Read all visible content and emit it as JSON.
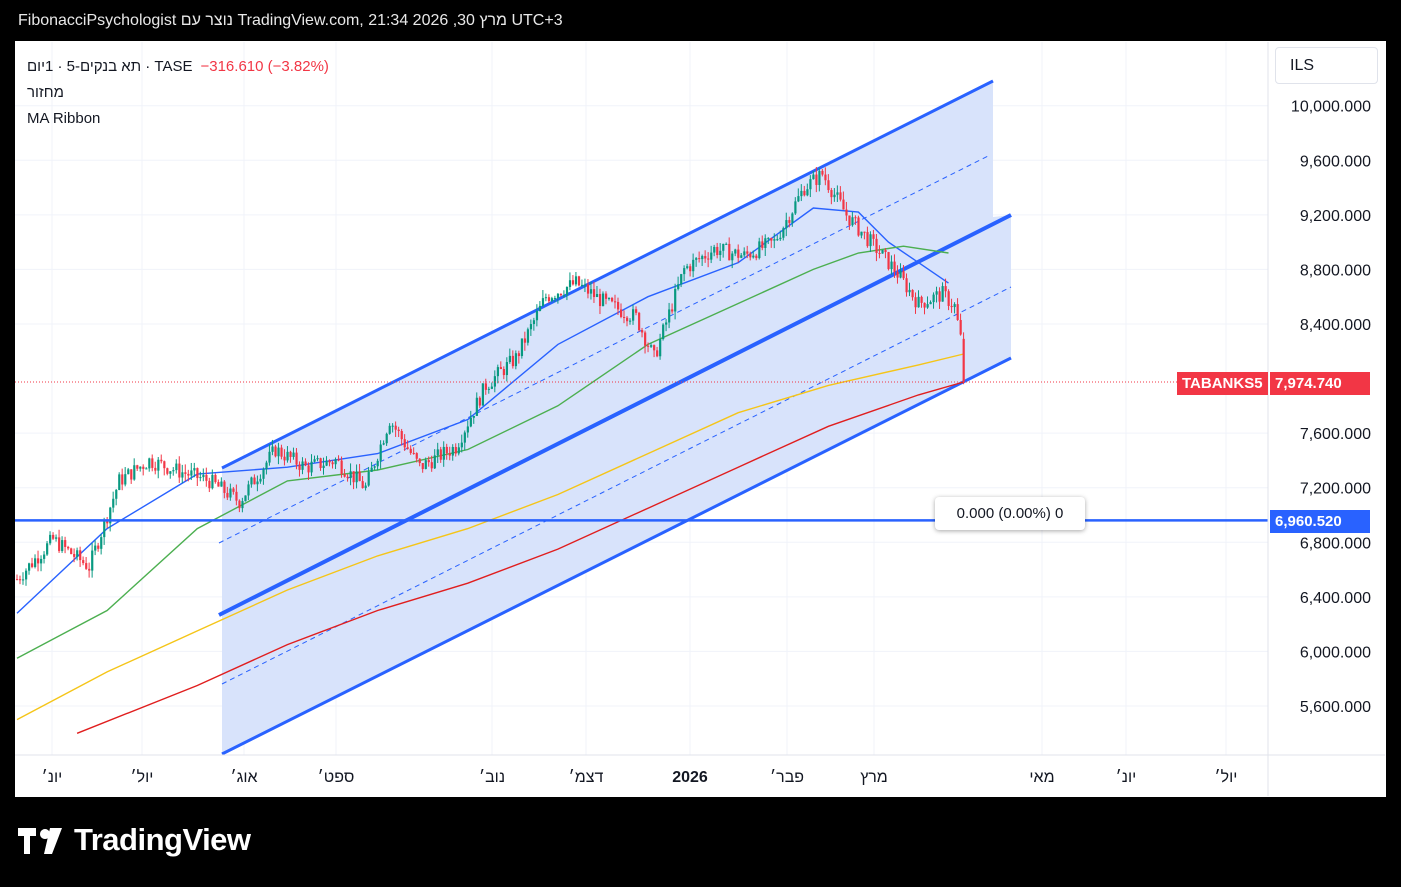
{
  "header": {
    "text": "FibonacciPsychologist נוצר עם TradingView.com, 21:34 2026 ,30 מרץ UTC+3"
  },
  "legend": {
    "symbol": "תא בנקים-5 · 1יום · TASE",
    "change": "−316.610 (−3.82%)",
    "volume_label": "מחזור",
    "indicator": "MA Ribbon"
  },
  "currency": "ILS",
  "price_labels": {
    "symbol_tag": "TABANKS5",
    "last_price": "7,974.740",
    "line_price": "6,960.520"
  },
  "measure_box": "0.000 (0.00%) 0",
  "logo_text": "TradingView",
  "colors": {
    "up": "#089981",
    "down": "#f23645",
    "channel": "#2962ff",
    "channel_fill": "#d6e2fb",
    "ma_blue": "#2962ff",
    "ma_green": "#4caf50",
    "ma_yellow": "#f5c518",
    "ma_red": "#e01e1e"
  },
  "chart_data": {
    "type": "candlestick",
    "y_axis_ticks": [
      "10,000.000",
      "9,600.000",
      "9,200.000",
      "8,800.000",
      "8,400.000",
      "7,600.000",
      "7,200.000",
      "6,800.000",
      "6,400.000",
      "6,000.000",
      "5,600.000"
    ],
    "y_tick_values": [
      10000,
      9600,
      9200,
      8800,
      8400,
      7600,
      7200,
      6800,
      6400,
      6000,
      5600
    ],
    "x_axis_labels": [
      "יונ׳",
      "יול׳",
      "אוג׳",
      "ספט׳",
      "נוב׳",
      "דצמ׳",
      "2026",
      "פבר׳",
      "מרץ",
      "מאי",
      "יונ׳",
      "יול׳"
    ],
    "close_anchors": [
      [
        0,
        6530
      ],
      [
        12,
        6820
      ],
      [
        24,
        6620
      ],
      [
        34,
        7250
      ],
      [
        44,
        7400
      ],
      [
        54,
        7320
      ],
      [
        64,
        7250
      ],
      [
        74,
        7100
      ],
      [
        86,
        7480
      ],
      [
        96,
        7350
      ],
      [
        106,
        7400
      ],
      [
        116,
        7200
      ],
      [
        124,
        7700
      ],
      [
        134,
        7350
      ],
      [
        146,
        7500
      ],
      [
        156,
        7950
      ],
      [
        166,
        8150
      ],
      [
        176,
        8600
      ],
      [
        186,
        8700
      ],
      [
        196,
        8550
      ],
      [
        206,
        8450
      ],
      [
        212,
        8150
      ],
      [
        222,
        8800
      ],
      [
        232,
        8950
      ],
      [
        242,
        8900
      ],
      [
        252,
        9000
      ],
      [
        262,
        9400
      ],
      [
        268,
        9500
      ],
      [
        276,
        9200
      ],
      [
        284,
        9000
      ],
      [
        292,
        8800
      ],
      [
        300,
        8550
      ],
      [
        308,
        8620
      ],
      [
        312,
        8530
      ],
      [
        314,
        8290
      ],
      [
        315,
        7975
      ]
    ],
    "last_close": 7974.74,
    "horizontal_line": 6960.52,
    "moving_averages": [
      {
        "color": "blue",
        "points": [
          [
            0,
            6280
          ],
          [
            30,
            6900
          ],
          [
            60,
            7300
          ],
          [
            90,
            7350
          ],
          [
            120,
            7450
          ],
          [
            150,
            7700
          ],
          [
            180,
            8250
          ],
          [
            210,
            8600
          ],
          [
            240,
            8850
          ],
          [
            265,
            9250
          ],
          [
            280,
            9220
          ],
          [
            290,
            9000
          ],
          [
            300,
            8850
          ],
          [
            310,
            8700
          ]
        ]
      },
      {
        "color": "green",
        "points": [
          [
            0,
            5950
          ],
          [
            30,
            6300
          ],
          [
            60,
            6900
          ],
          [
            90,
            7250
          ],
          [
            120,
            7330
          ],
          [
            150,
            7480
          ],
          [
            180,
            7800
          ],
          [
            210,
            8250
          ],
          [
            240,
            8550
          ],
          [
            265,
            8800
          ],
          [
            280,
            8920
          ],
          [
            295,
            8970
          ],
          [
            310,
            8920
          ]
        ]
      },
      {
        "color": "yellow",
        "points": [
          [
            0,
            5500
          ],
          [
            30,
            5850
          ],
          [
            60,
            6150
          ],
          [
            90,
            6450
          ],
          [
            120,
            6700
          ],
          [
            150,
            6900
          ],
          [
            180,
            7150
          ],
          [
            210,
            7450
          ],
          [
            240,
            7750
          ],
          [
            270,
            7950
          ],
          [
            300,
            8100
          ],
          [
            315,
            8180
          ]
        ]
      },
      {
        "color": "red",
        "points": [
          [
            20,
            5400
          ],
          [
            60,
            5750
          ],
          [
            90,
            6050
          ],
          [
            120,
            6300
          ],
          [
            150,
            6500
          ],
          [
            180,
            6750
          ],
          [
            210,
            7050
          ],
          [
            240,
            7350
          ],
          [
            270,
            7650
          ],
          [
            300,
            7880
          ],
          [
            315,
            7975
          ]
        ]
      }
    ]
  }
}
